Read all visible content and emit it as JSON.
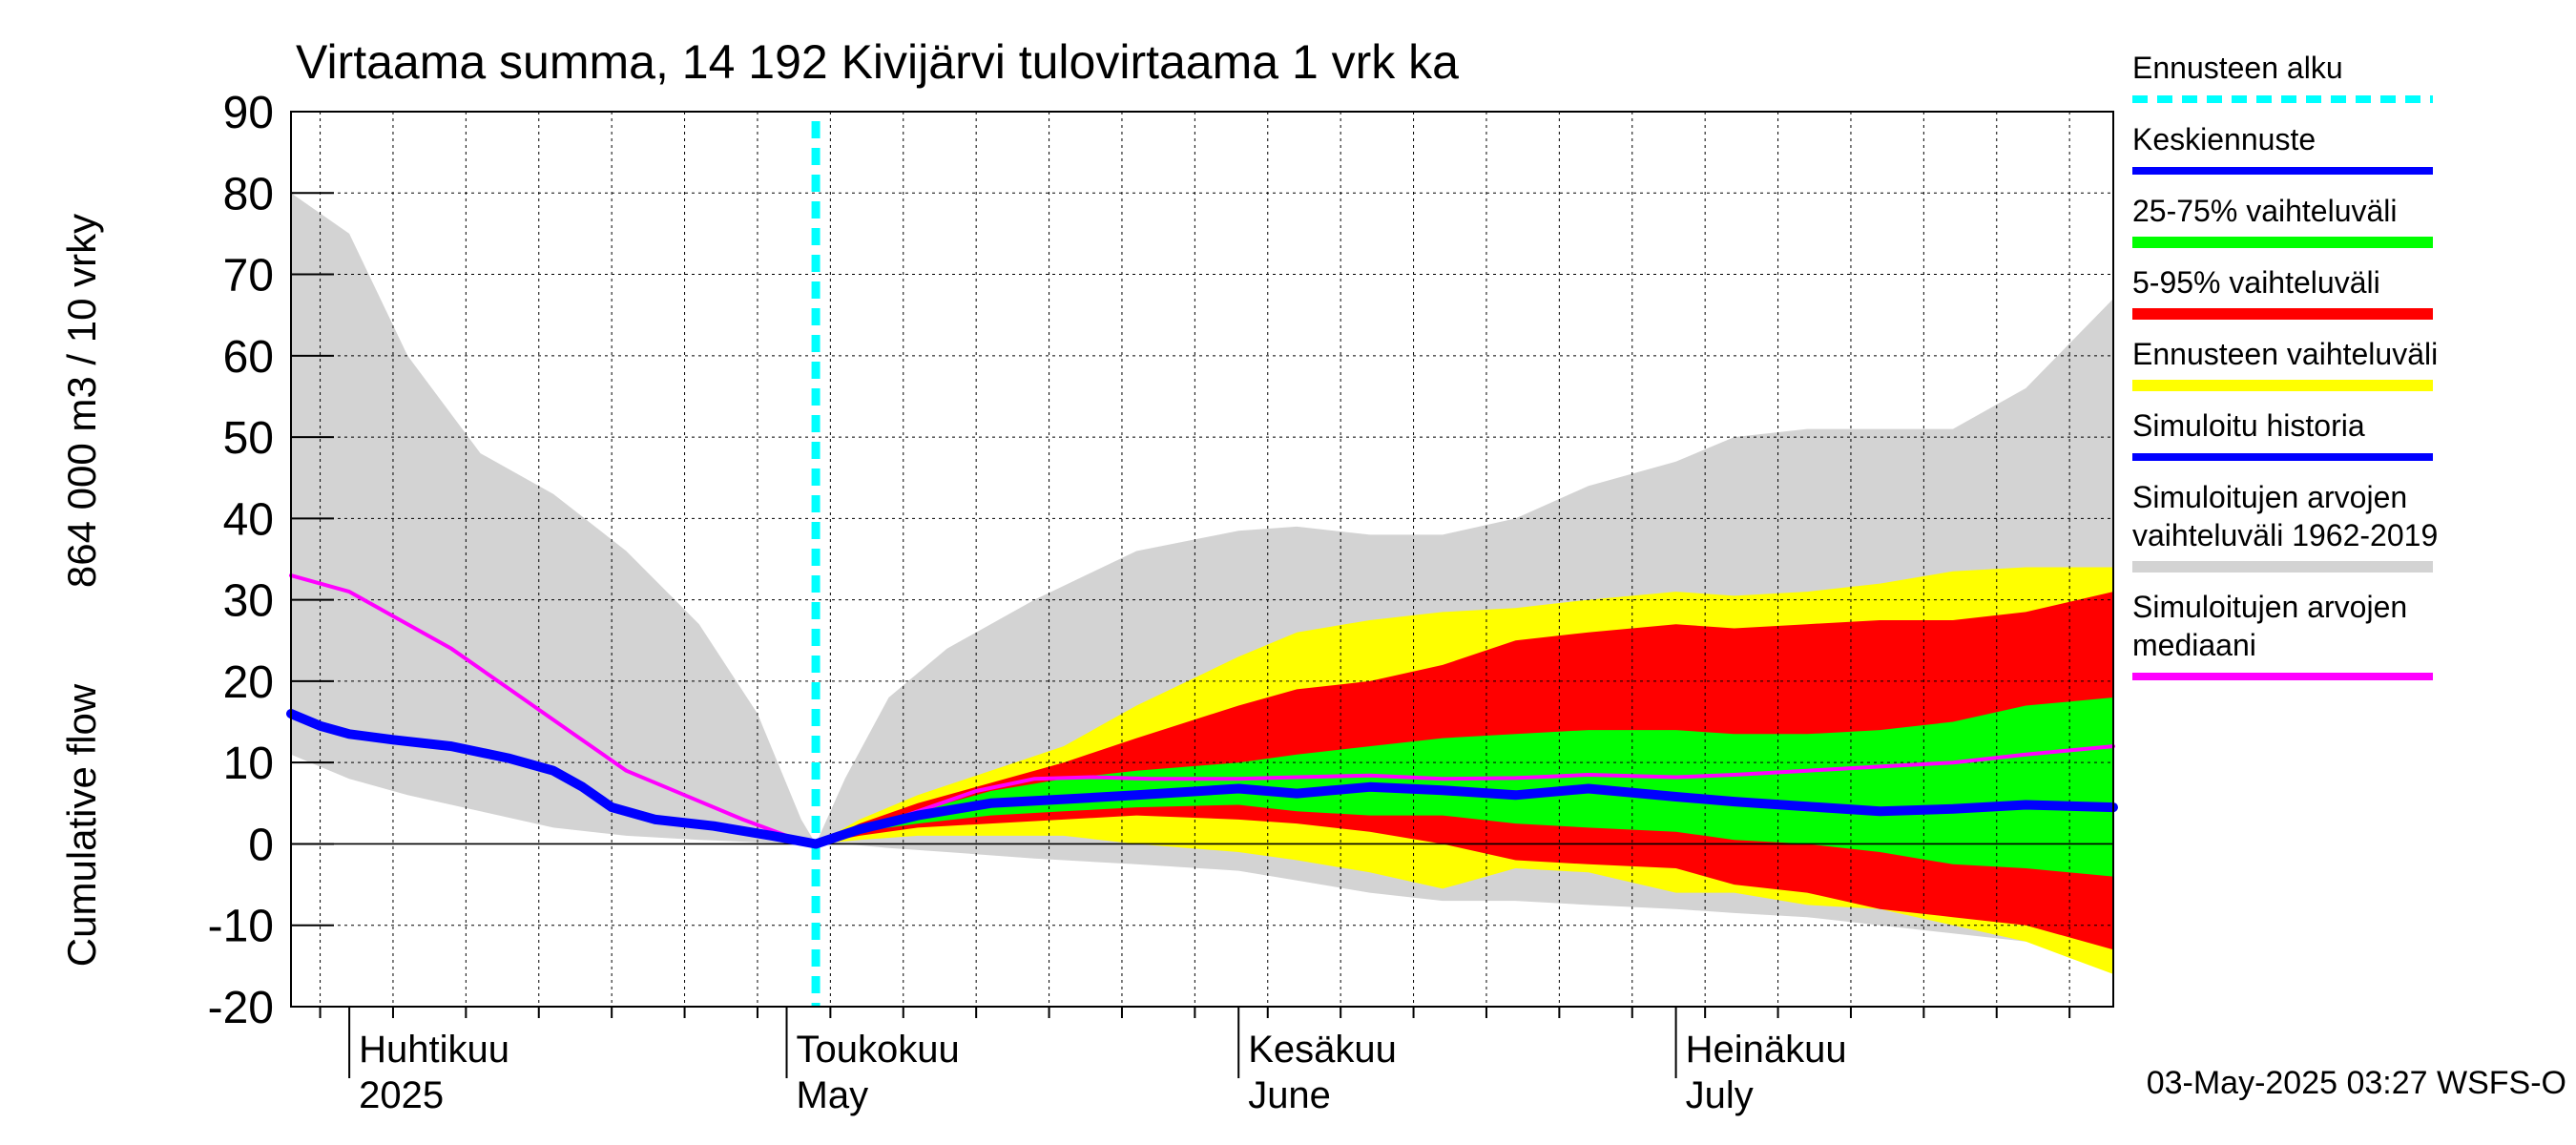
{
  "title": "Virtaama summa, 14 192 Kivijärvi tulovirtaama 1 vrk ka",
  "ylabel_fi": "864 000 m3 / 10 vrky",
  "ylabel_en": "Cumulative flow",
  "footer": "03-May-2025 03:27 WSFS-O",
  "colors": {
    "forecast_start": "#00ffff",
    "mean_forecast": "#0000ff",
    "band_25_75": "#00ff00",
    "band_5_95": "#ff0000",
    "band_forecast": "#ffff00",
    "history": "#0000ff",
    "hist_range": "#d3d3d3",
    "median": "#ff00ff"
  },
  "legend": [
    {
      "label": "Ennusteen alku",
      "color": "#00ffff",
      "style": "dashed"
    },
    {
      "label": "Keskiennuste",
      "color": "#0000ff",
      "style": "line"
    },
    {
      "label": "25-75% vaihteluväli",
      "color": "#00ff00",
      "style": "band"
    },
    {
      "label": "5-95% vaihteluväli",
      "color": "#ff0000",
      "style": "band"
    },
    {
      "label": "Ennusteen vaihteluväli",
      "color": "#ffff00",
      "style": "band"
    },
    {
      "label": "Simuloitu historia",
      "color": "#0000ff",
      "style": "line"
    },
    {
      "label": "Simuloitujen arvojen vaihteluväli 1962-2019",
      "color": "#d3d3d3",
      "style": "band",
      "lines": [
        "Simuloitujen arvojen",
        "vaihteluväli 1962-2019"
      ]
    },
    {
      "label": "Simuloitujen arvojen mediaani",
      "color": "#ff00ff",
      "style": "line",
      "lines": [
        "Simuloitujen arvojen",
        "mediaani"
      ]
    }
  ],
  "chart_data": {
    "type": "area",
    "x_unit": "day (2025)",
    "xlim": [
      "2025-03-28",
      "2025-07-31"
    ],
    "ylim": [
      -20,
      90
    ],
    "yticks": [
      -20,
      -10,
      0,
      10,
      20,
      30,
      40,
      50,
      60,
      70,
      80,
      90
    ],
    "grid": true,
    "forecast_start": "2025-05-03",
    "month_labels": [
      {
        "date": "2025-04-01",
        "line1": "Huhtikuu",
        "line2": "2025"
      },
      {
        "date": "2025-05-01",
        "line1": "Toukokuu",
        "line2": "May"
      },
      {
        "date": "2025-06-01",
        "line1": "Kesäkuu",
        "line2": "June"
      },
      {
        "date": "2025-07-01",
        "line1": "Heinäkuu",
        "line2": "July"
      }
    ],
    "hist_range": {
      "x": [
        "2025-03-28",
        "2025-04-01",
        "2025-04-05",
        "2025-04-10",
        "2025-04-15",
        "2025-04-20",
        "2025-04-25",
        "2025-04-29",
        "2025-05-02",
        "2025-05-03",
        "2025-05-05",
        "2025-05-08",
        "2025-05-12",
        "2025-05-18",
        "2025-05-25",
        "2025-06-01",
        "2025-06-05",
        "2025-06-10",
        "2025-06-15",
        "2025-06-20",
        "2025-06-25",
        "2025-07-01",
        "2025-07-05",
        "2025-07-10",
        "2025-07-15",
        "2025-07-20",
        "2025-07-25",
        "2025-07-31"
      ],
      "low": [
        11,
        8,
        6,
        4,
        2,
        1,
        0.5,
        0.2,
        0,
        0,
        0,
        -0.5,
        -1,
        -1.8,
        -2.5,
        -3.3,
        -4.5,
        -6,
        -7,
        -7,
        -7.5,
        -8,
        -8.5,
        -9,
        -10,
        -11,
        -12,
        -14
      ],
      "high": [
        80,
        75,
        60,
        48,
        43,
        36,
        27,
        16,
        3,
        0,
        8,
        18,
        24,
        30,
        36,
        38.5,
        39,
        38,
        38,
        40,
        44,
        47,
        50,
        51,
        51,
        51,
        56,
        67
      ]
    },
    "series": [
      {
        "name": "Simuloitujen arvojen mediaani",
        "x": [
          "2025-03-28",
          "2025-03-31",
          "2025-04-01",
          "2025-04-04",
          "2025-04-08",
          "2025-04-12",
          "2025-04-16",
          "2025-04-20",
          "2025-04-24",
          "2025-04-28",
          "2025-05-01",
          "2025-05-03",
          "2025-05-06",
          "2025-05-10",
          "2025-05-14",
          "2025-05-18",
          "2025-05-22",
          "2025-05-26",
          "2025-06-01",
          "2025-06-05",
          "2025-06-10",
          "2025-06-15",
          "2025-06-20",
          "2025-06-25",
          "2025-07-01",
          "2025-07-05",
          "2025-07-10",
          "2025-07-15",
          "2025-07-20",
          "2025-07-25",
          "2025-07-31"
        ],
        "y": [
          33,
          31.5,
          31,
          28,
          24,
          19,
          14,
          9,
          6,
          3,
          1,
          0,
          1.5,
          4,
          6.5,
          8,
          8.2,
          8,
          8,
          8.2,
          8.4,
          8,
          8.1,
          8.5,
          8.2,
          8.5,
          9,
          9.5,
          10,
          11,
          12
        ]
      },
      {
        "name": "Simuloitu historia",
        "x": [
          "2025-03-28",
          "2025-03-30",
          "2025-04-01",
          "2025-04-04",
          "2025-04-08",
          "2025-04-12",
          "2025-04-15",
          "2025-04-17",
          "2025-04-19",
          "2025-04-22",
          "2025-04-26",
          "2025-04-30",
          "2025-05-03"
        ],
        "y": [
          16,
          14.5,
          13.5,
          12.8,
          12,
          10.5,
          9,
          7,
          4.5,
          3,
          2.2,
          1,
          0
        ]
      },
      {
        "name": "Keskiennuste",
        "x": [
          "2025-05-03",
          "2025-05-06",
          "2025-05-10",
          "2025-05-15",
          "2025-05-20",
          "2025-05-25",
          "2025-06-01",
          "2025-06-05",
          "2025-06-10",
          "2025-06-15",
          "2025-06-20",
          "2025-06-25",
          "2025-07-01",
          "2025-07-05",
          "2025-07-10",
          "2025-07-15",
          "2025-07-20",
          "2025-07-25",
          "2025-07-31"
        ],
        "y": [
          0,
          1.8,
          3.5,
          5,
          5.5,
          6,
          6.8,
          6.2,
          7,
          6.6,
          6,
          6.8,
          5.8,
          5.2,
          4.6,
          4,
          4.3,
          4.8,
          4.5
        ]
      }
    ],
    "bands": [
      {
        "name": "Ennusteen vaihteluväli",
        "x": [
          "2025-05-03",
          "2025-05-06",
          "2025-05-10",
          "2025-05-15",
          "2025-05-20",
          "2025-05-25",
          "2025-06-01",
          "2025-06-05",
          "2025-06-10",
          "2025-06-15",
          "2025-06-20",
          "2025-06-25",
          "2025-07-01",
          "2025-07-05",
          "2025-07-10",
          "2025-07-15",
          "2025-07-20",
          "2025-07-25",
          "2025-07-31"
        ],
        "low": [
          0,
          0.5,
          1,
          1,
          1,
          0,
          -1,
          -2,
          -3.5,
          -5.5,
          -3,
          -3.5,
          -6,
          -6,
          -7.5,
          -8,
          -10,
          -12,
          -16
        ],
        "high": [
          0,
          3,
          6,
          9,
          12,
          17,
          23,
          26,
          27.5,
          28.5,
          29,
          30,
          31,
          30.5,
          31,
          32,
          33.5,
          34,
          34
        ]
      },
      {
        "name": "5-95% vaihteluväli",
        "x": [
          "2025-05-03",
          "2025-05-06",
          "2025-05-10",
          "2025-05-15",
          "2025-05-20",
          "2025-05-25",
          "2025-06-01",
          "2025-06-05",
          "2025-06-10",
          "2025-06-15",
          "2025-06-20",
          "2025-06-25",
          "2025-07-01",
          "2025-07-05",
          "2025-07-10",
          "2025-07-15",
          "2025-07-20",
          "2025-07-25",
          "2025-07-31"
        ],
        "low": [
          0,
          1,
          2,
          2.5,
          3,
          3.5,
          3,
          2.5,
          1.5,
          0,
          -2,
          -2.5,
          -3,
          -5,
          -6,
          -8,
          -9,
          -10,
          -13
        ],
        "high": [
          0,
          2.5,
          5,
          7.5,
          10,
          13,
          17,
          19,
          20,
          22,
          25,
          26,
          27,
          26.5,
          27,
          27.5,
          27.5,
          28.5,
          31
        ]
      },
      {
        "name": "25-75% vaihteluväli",
        "x": [
          "2025-05-03",
          "2025-05-06",
          "2025-05-10",
          "2025-05-15",
          "2025-05-20",
          "2025-05-25",
          "2025-06-01",
          "2025-06-05",
          "2025-06-10",
          "2025-06-15",
          "2025-06-20",
          "2025-06-25",
          "2025-07-01",
          "2025-07-05",
          "2025-07-10",
          "2025-07-15",
          "2025-07-20",
          "2025-07-25",
          "2025-07-31"
        ],
        "low": [
          0,
          1.5,
          2.5,
          3.5,
          4,
          4.5,
          4.8,
          4,
          3.5,
          3.5,
          2.5,
          2,
          1.5,
          0.5,
          0,
          -1,
          -2.5,
          -3,
          -4
        ],
        "high": [
          0,
          2,
          4,
          6.5,
          8,
          9,
          10,
          11,
          12,
          13,
          13.5,
          14,
          14,
          13.5,
          13.5,
          14,
          15,
          17,
          18
        ]
      }
    ]
  }
}
